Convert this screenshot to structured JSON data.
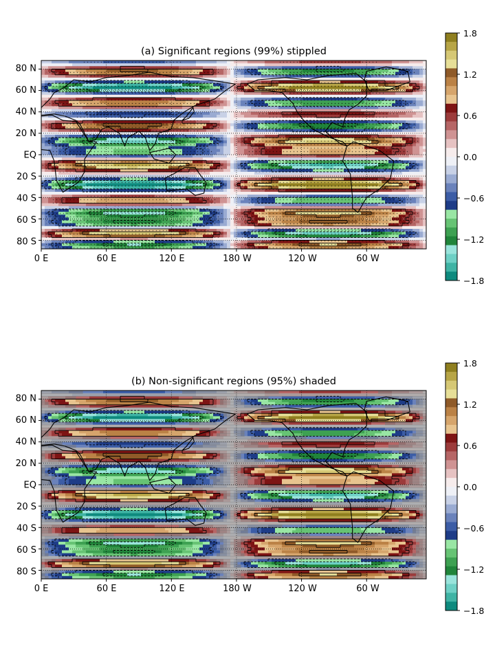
{
  "chart_data": [
    {
      "type": "heatmap",
      "title": "(a) Significant regions (99%) stippled",
      "x_ticks": [
        "0 E",
        "60 E",
        "120 E",
        "180 W",
        "120 W",
        "60 W"
      ],
      "x_tick_lons": [
        0,
        60,
        120,
        180,
        240,
        300
      ],
      "y_ticks": [
        "80 N",
        "60 N",
        "40 N",
        "20 N",
        "EQ",
        "20 S",
        "40 S",
        "60 S",
        "80 S"
      ],
      "y_tick_lats": [
        80,
        60,
        40,
        20,
        0,
        -20,
        -40,
        -60,
        -80
      ],
      "xlim": [
        0,
        355
      ],
      "ylim": [
        -88,
        88
      ],
      "colorbar": {
        "ticks": [
          "1.8",
          "1.2",
          "0.6",
          "0.0",
          "−0.6",
          "−1.2",
          "−1.8"
        ],
        "range": [
          -1.8,
          1.8
        ]
      },
      "significance_overlay": "stippled"
    },
    {
      "type": "heatmap",
      "title": "(b) Non-significant regions (95%) shaded",
      "x_ticks": [
        "0 E",
        "60 E",
        "120 E",
        "180 W",
        "120 W",
        "60 W"
      ],
      "x_tick_lons": [
        0,
        60,
        120,
        180,
        240,
        300
      ],
      "y_ticks": [
        "80 N",
        "60 N",
        "40 N",
        "20 N",
        "EQ",
        "20 S",
        "40 S",
        "60 S",
        "80 S"
      ],
      "y_tick_lats": [
        80,
        60,
        40,
        20,
        0,
        -20,
        -40,
        -60,
        -80
      ],
      "xlim": [
        0,
        355
      ],
      "ylim": [
        -88,
        88
      ],
      "colorbar": {
        "ticks": [
          "1.8",
          "1.2",
          "0.6",
          "0.0",
          "−0.6",
          "−1.2",
          "−1.8"
        ],
        "range": [
          -1.8,
          1.8
        ]
      },
      "significance_overlay": "grey-shaded"
    }
  ],
  "field_model": {
    "lat_bands": [
      {
        "lat": 86,
        "amp": 0.5
      },
      {
        "lat": 78,
        "amp": -1.0
      },
      {
        "lat": 63,
        "amp": 1.4
      },
      {
        "lat": 48,
        "amp": -0.9
      },
      {
        "lat": 38,
        "amp": 0.6
      },
      {
        "lat": 27,
        "amp": -1.0
      },
      {
        "lat": 13,
        "amp": 1.1
      },
      {
        "lat": 2,
        "amp": 0.7
      },
      {
        "lat": -10,
        "amp": -1.2
      },
      {
        "lat": -28,
        "amp": 1.5
      },
      {
        "lat": -43,
        "amp": -0.8
      },
      {
        "lat": -54,
        "amp": 1.0
      },
      {
        "lat": -64,
        "amp": 0.9
      },
      {
        "lat": -74,
        "amp": -1.2
      },
      {
        "lat": -84,
        "amp": 1.0
      }
    ],
    "zonal_phase_deg": 265
  },
  "colors": {
    "palette": [
      "#0e8a7e",
      "#3fb3a4",
      "#6ed0c5",
      "#99e4db",
      "#20843a",
      "#3ea152",
      "#67c374",
      "#99e6a4",
      "#1e3c87",
      "#3c5da6",
      "#6a82bb",
      "#9aabd2",
      "#c8d1e6",
      "#eef0f6",
      "#f6ecec",
      "#e6c2c2",
      "#cf9393",
      "#b66666",
      "#9c3b3b",
      "#7d1414",
      "#e8c48f",
      "#d6a56c",
      "#bb8246",
      "#8f5a28",
      "#e7df98",
      "#d6c875",
      "#b7a546",
      "#8f7f1f"
    ],
    "shade": "#787878",
    "coast": "#000000",
    "stipple": "#000000"
  }
}
